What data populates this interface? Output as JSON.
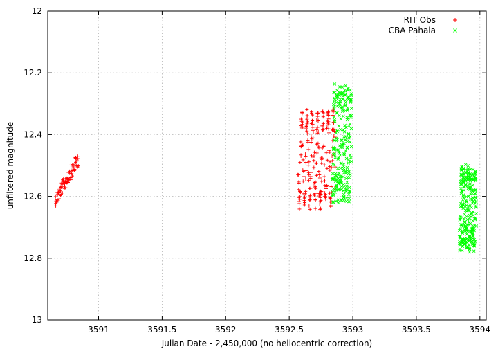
{
  "chart_data": {
    "type": "scatter",
    "title": "",
    "xlabel": "Julian Date - 2,450,000 (no heliocentric correction)",
    "ylabel": "unfiltered magnitude",
    "xlim": [
      3590.6,
      3594.05
    ],
    "ylim": [
      13.0,
      12.0
    ],
    "y_inverted": true,
    "grid": true,
    "legend_position": "top-right",
    "x_ticks": [
      "3591",
      "3591.5",
      "3592",
      "3592.5",
      "3593",
      "3593.5",
      "3594"
    ],
    "y_ticks": [
      "12",
      "12.2",
      "12.4",
      "12.6",
      "12.8",
      "13"
    ],
    "series": [
      {
        "name": "RIT Obs",
        "marker": "plus",
        "color": "#ff0000",
        "segments": [
          {
            "x_start": 3590.66,
            "x_end": 3590.84,
            "mag_start": 12.61,
            "mag_end": 12.48,
            "spread": 0.045,
            "count": 90,
            "wave": 0
          },
          {
            "x_start": 3592.57,
            "x_end": 3592.86,
            "mag_center": 12.48,
            "amplitude": 0.14,
            "spread": 0.05,
            "count": 240,
            "wave": 1
          }
        ]
      },
      {
        "name": "CBA Pahala",
        "marker": "cross",
        "color": "#00ff00",
        "segments": [
          {
            "x_start": 3592.84,
            "x_end": 3592.99,
            "mag_center": 12.43,
            "amplitude": 0.17,
            "spread": 0.05,
            "count": 240,
            "wave": 1
          },
          {
            "x_start": 3593.84,
            "x_end": 3593.97,
            "mag_center": 12.64,
            "amplitude": 0.12,
            "spread": 0.05,
            "count": 280,
            "wave": 1
          }
        ]
      }
    ]
  }
}
